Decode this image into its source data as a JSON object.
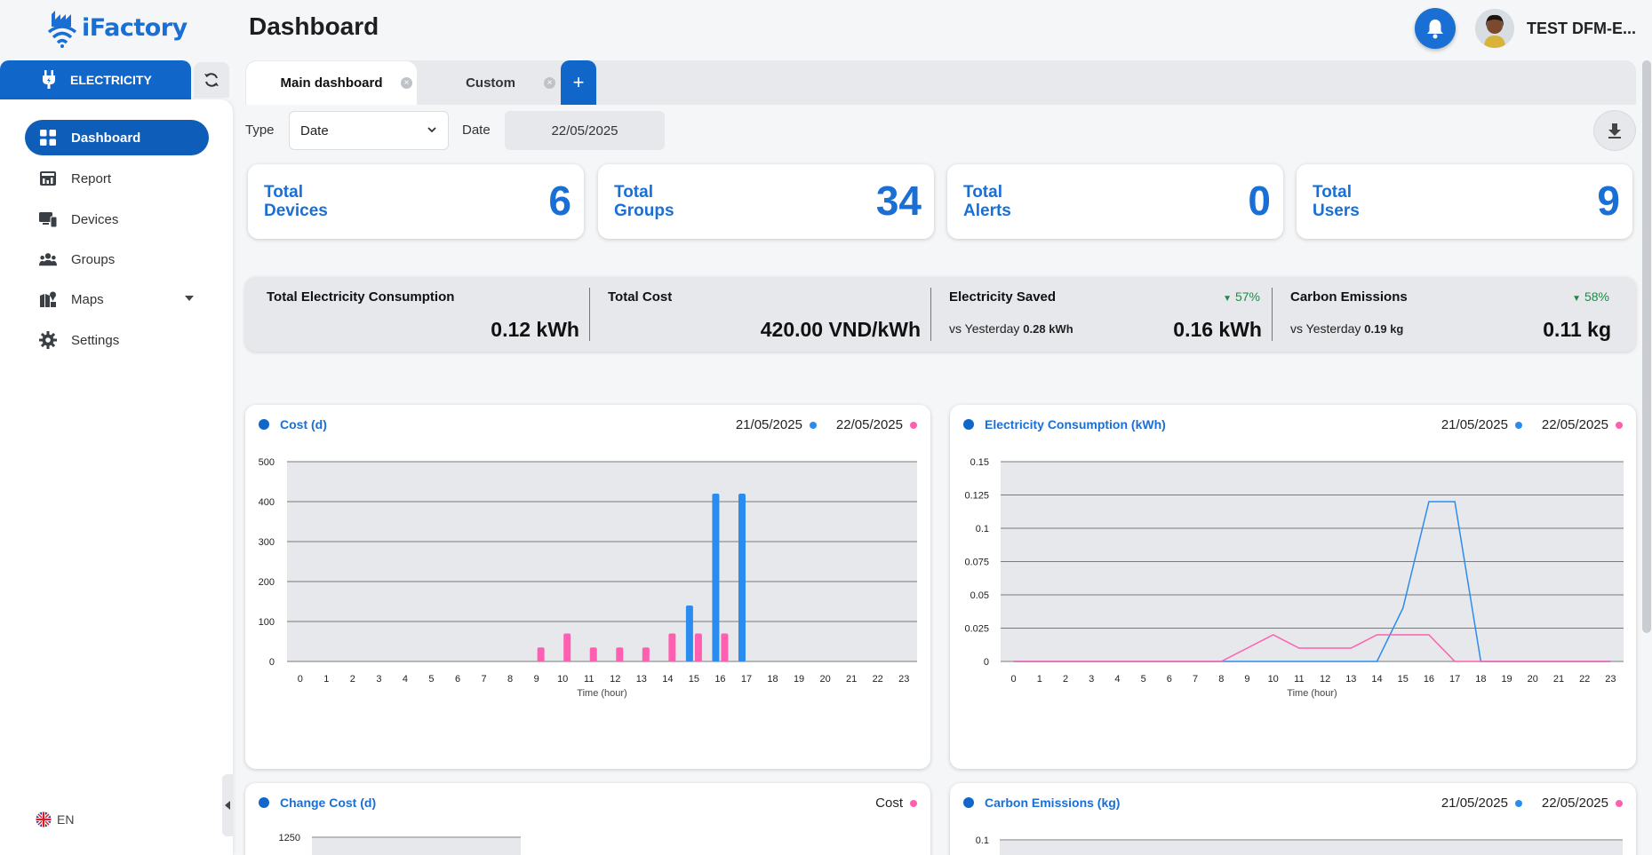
{
  "header": {
    "logo_text": "iFactory",
    "page_title": "Dashboard",
    "user_name": "TEST DFM-E..."
  },
  "sidebar": {
    "module_label": "ELECTRICITY",
    "items": [
      {
        "label": "Dashboard",
        "icon": "grid-icon",
        "active": true
      },
      {
        "label": "Report",
        "icon": "report-icon",
        "active": false
      },
      {
        "label": "Devices",
        "icon": "devices-icon",
        "active": false
      },
      {
        "label": "Groups",
        "icon": "groups-icon",
        "active": false
      },
      {
        "label": "Maps",
        "icon": "map-icon",
        "active": false
      },
      {
        "label": "Settings",
        "icon": "gear-icon",
        "active": false
      }
    ],
    "language": "EN"
  },
  "tabs": [
    {
      "label": "Main dashboard"
    },
    {
      "label": "Custom"
    }
  ],
  "filters": {
    "type_label": "Type",
    "type_value": "Date",
    "date_label": "Date",
    "date_value": "22/05/2025"
  },
  "stats": [
    {
      "label_line1": "Total",
      "label_line2": "Devices",
      "value": "6"
    },
    {
      "label_line1": "Total",
      "label_line2": "Groups",
      "value": "34"
    },
    {
      "label_line1": "Total",
      "label_line2": "Alerts",
      "value": "0"
    },
    {
      "label_line1": "Total",
      "label_line2": "Users",
      "value": "9"
    }
  ],
  "summary": {
    "consumption": {
      "title": "Total Electricity Consumption",
      "value": "0.12 kWh"
    },
    "cost": {
      "title": "Total Cost",
      "value": "420.00 VND/kWh"
    },
    "saved": {
      "title": "Electricity Saved",
      "pct": "57%",
      "vs_label": "vs Yesterday",
      "vs_value": "0.28 kWh",
      "value": "0.16 kWh"
    },
    "carbon": {
      "title": "Carbon Emissions",
      "pct": "58%",
      "vs_label": "vs Yesterday",
      "vs_value": "0.19 kg",
      "value": "0.11 kg"
    }
  },
  "colors": {
    "accent": "#1a6fd4",
    "series_prev": "#2b8cf0",
    "series_curr": "#ff5fb0",
    "positive": "#1f8a47"
  },
  "chart_data": [
    {
      "type": "bar",
      "title": "Cost (d)",
      "xlabel": "Time (hour)",
      "ylabel": "",
      "categories": [
        "0",
        "1",
        "2",
        "3",
        "4",
        "5",
        "6",
        "7",
        "8",
        "9",
        "10",
        "11",
        "12",
        "13",
        "14",
        "15",
        "16",
        "17",
        "18",
        "19",
        "20",
        "21",
        "22",
        "23"
      ],
      "series": [
        {
          "name": "21/05/2025",
          "values": [
            0,
            0,
            0,
            0,
            0,
            0,
            0,
            0,
            0,
            0,
            0,
            0,
            0,
            0,
            0,
            140,
            420,
            420,
            0,
            0,
            0,
            0,
            0,
            0
          ]
        },
        {
          "name": "22/05/2025",
          "values": [
            0,
            0,
            0,
            0,
            0,
            0,
            0,
            0,
            0,
            35,
            70,
            35,
            35,
            35,
            70,
            70,
            70,
            0,
            0,
            0,
            0,
            0,
            0,
            0
          ]
        }
      ],
      "yticks": [
        "0",
        "100",
        "200",
        "300",
        "400",
        "500"
      ],
      "ylim": [
        0,
        500
      ],
      "grid": true
    },
    {
      "type": "line",
      "title": "Electricity Consumption (kWh)",
      "xlabel": "Time (hour)",
      "ylabel": "",
      "categories": [
        "0",
        "1",
        "2",
        "3",
        "4",
        "5",
        "6",
        "7",
        "8",
        "9",
        "10",
        "11",
        "12",
        "13",
        "14",
        "15",
        "16",
        "17",
        "18",
        "19",
        "20",
        "21",
        "22",
        "23"
      ],
      "series": [
        {
          "name": "21/05/2025",
          "values": [
            0,
            0,
            0,
            0,
            0,
            0,
            0,
            0,
            0,
            0,
            0,
            0,
            0,
            0,
            0,
            0.04,
            0.12,
            0.12,
            0,
            0,
            0,
            0,
            0,
            0
          ]
        },
        {
          "name": "22/05/2025",
          "values": [
            0,
            0,
            0,
            0,
            0,
            0,
            0,
            0,
            0,
            0.01,
            0.02,
            0.01,
            0.01,
            0.01,
            0.02,
            0.02,
            0.02,
            0,
            0,
            0,
            0,
            0,
            0,
            0
          ]
        }
      ],
      "yticks": [
        "0",
        "0.025",
        "0.05",
        "0.075",
        "0.1",
        "0.125",
        "0.15"
      ],
      "ylim": [
        0,
        0.15
      ],
      "grid": true
    },
    {
      "type": "bar",
      "title": "Change Cost (d)",
      "series": [
        {
          "name": "Cost",
          "values": []
        }
      ],
      "yticks": [
        "1250"
      ]
    },
    {
      "type": "line",
      "title": "Carbon Emissions (kg)",
      "series": [
        {
          "name": "21/05/2025",
          "values": []
        },
        {
          "name": "22/05/2025",
          "values": []
        }
      ],
      "yticks": [
        "0.1"
      ]
    }
  ]
}
